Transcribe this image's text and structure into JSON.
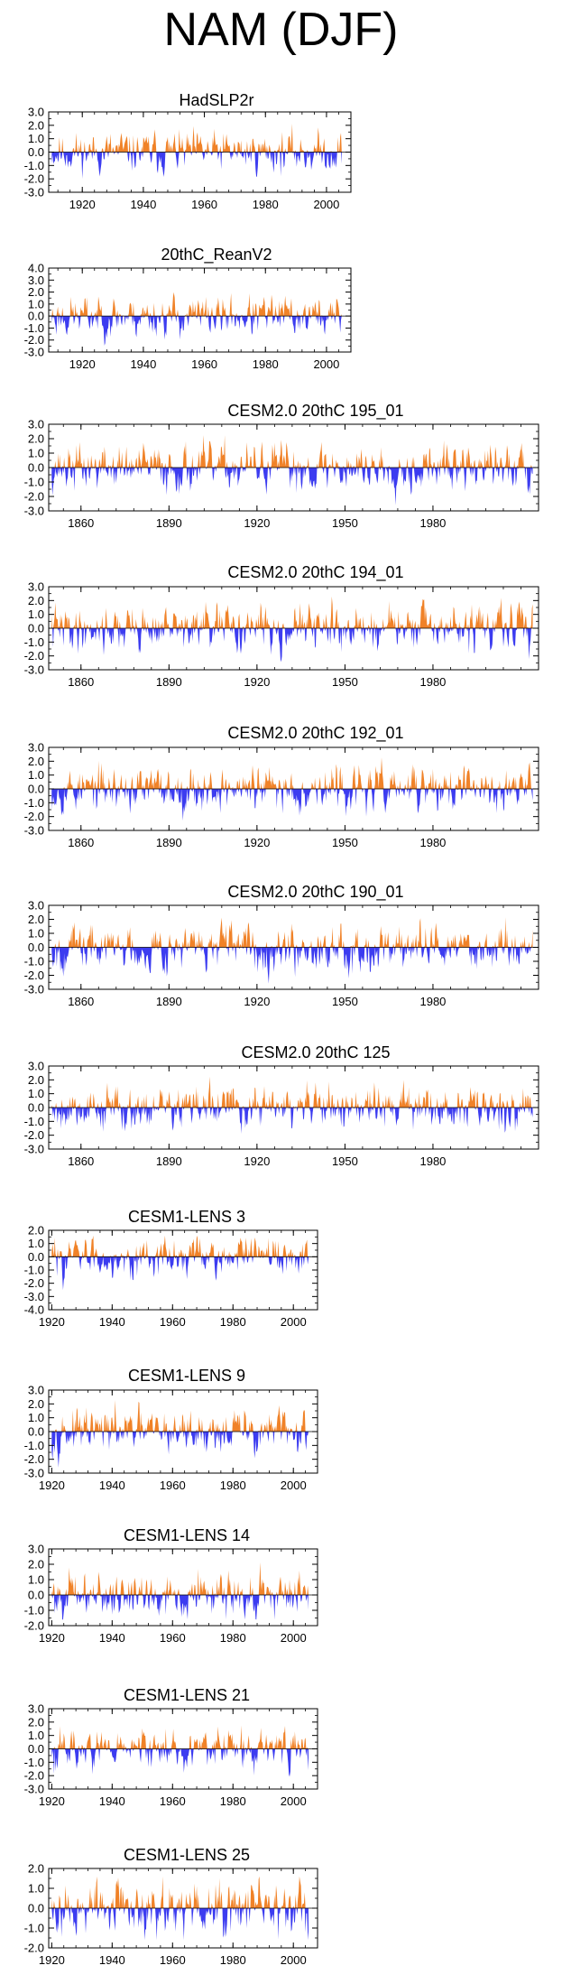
{
  "figure": {
    "title": "NAM (DJF)"
  },
  "colors": {
    "positive": "#f08228",
    "negative": "#3c3cf0",
    "axis": "#000000"
  },
  "chart_data": [
    {
      "type": "area",
      "title": "HadSLP2r",
      "xlim": [
        1909,
        2008
      ],
      "ylim": [
        -3.0,
        3.0
      ],
      "xticks": [
        1920,
        1940,
        1960,
        1980,
        2000
      ],
      "xtick_labels": [
        "1920",
        "1940",
        "1960",
        "1980",
        "2000"
      ],
      "yticks": [
        3.0,
        2.0,
        1.0,
        0.0,
        -1.0,
        -2.0,
        -3.0
      ],
      "ytick_labels": [
        "3.0",
        "2.0",
        "1.0",
        "0.0",
        "-1.0",
        "-2.0",
        "-3.0"
      ],
      "x_start": 1910,
      "x_end": 2005,
      "seed": 11,
      "amp": 0.85
    },
    {
      "type": "area",
      "title": "20thC_ReanV2",
      "xlim": [
        1909,
        2008
      ],
      "ylim": [
        -3.0,
        4.0
      ],
      "xticks": [
        1920,
        1940,
        1960,
        1980,
        2000
      ],
      "xtick_labels": [
        "1920",
        "1940",
        "1960",
        "1980",
        "2000"
      ],
      "yticks": [
        4.0,
        3.0,
        2.0,
        1.0,
        0.0,
        -1.0,
        -2.0,
        -3.0
      ],
      "ytick_labels": [
        "4.0",
        "3.0",
        "2.0",
        "1.0",
        "0.0",
        "-1.0",
        "-2.0",
        "-3.0"
      ],
      "x_start": 1910,
      "x_end": 2005,
      "seed": 23,
      "amp": 0.95
    },
    {
      "type": "area",
      "title": "CESM2.0 20thC 195_01",
      "xlim": [
        1849,
        2016
      ],
      "ylim": [
        -3.0,
        3.0
      ],
      "xticks": [
        1860,
        1890,
        1920,
        1950,
        1980
      ],
      "xtick_labels": [
        "1860",
        "1890",
        "1920",
        "1950",
        "1980"
      ],
      "yticks": [
        3.0,
        2.0,
        1.0,
        0.0,
        -1.0,
        -2.0,
        -3.0
      ],
      "ytick_labels": [
        "3.0",
        "2.0",
        "1.0",
        "0.0",
        "-1.0",
        "-2.0",
        "-3.0"
      ],
      "x_start": 1850,
      "x_end": 2014,
      "seed": 37,
      "amp": 0.9
    },
    {
      "type": "area",
      "title": "CESM2.0 20thC 194_01",
      "xlim": [
        1849,
        2016
      ],
      "ylim": [
        -3.0,
        3.0
      ],
      "xticks": [
        1860,
        1890,
        1920,
        1950,
        1980
      ],
      "xtick_labels": [
        "1860",
        "1890",
        "1920",
        "1950",
        "1980"
      ],
      "yticks": [
        3.0,
        2.0,
        1.0,
        0.0,
        -1.0,
        -2.0,
        -3.0
      ],
      "ytick_labels": [
        "3.0",
        "2.0",
        "1.0",
        "0.0",
        "-1.0",
        "-2.0",
        "-3.0"
      ],
      "x_start": 1850,
      "x_end": 2014,
      "seed": 41,
      "amp": 0.9
    },
    {
      "type": "area",
      "title": "CESM2.0 20thC 192_01",
      "xlim": [
        1849,
        2016
      ],
      "ylim": [
        -3.0,
        3.0
      ],
      "xticks": [
        1860,
        1890,
        1920,
        1950,
        1980
      ],
      "xtick_labels": [
        "1860",
        "1890",
        "1920",
        "1950",
        "1980"
      ],
      "yticks": [
        3.0,
        2.0,
        1.0,
        0.0,
        -1.0,
        -2.0,
        -3.0
      ],
      "ytick_labels": [
        "3.0",
        "2.0",
        "1.0",
        "0.0",
        "-1.0",
        "-2.0",
        "-3.0"
      ],
      "x_start": 1850,
      "x_end": 2014,
      "seed": 53,
      "amp": 0.9
    },
    {
      "type": "area",
      "title": "CESM2.0 20thC 190_01",
      "xlim": [
        1849,
        2016
      ],
      "ylim": [
        -3.0,
        3.0
      ],
      "xticks": [
        1860,
        1890,
        1920,
        1950,
        1980
      ],
      "xtick_labels": [
        "1860",
        "1890",
        "1920",
        "1950",
        "1980"
      ],
      "yticks": [
        3.0,
        2.0,
        1.0,
        0.0,
        -1.0,
        -2.0,
        -3.0
      ],
      "ytick_labels": [
        "3.0",
        "2.0",
        "1.0",
        "0.0",
        "-1.0",
        "-2.0",
        "-3.0"
      ],
      "x_start": 1850,
      "x_end": 2014,
      "seed": 67,
      "amp": 0.9
    },
    {
      "type": "area",
      "title": "CESM2.0 20thC 125",
      "xlim": [
        1849,
        2016
      ],
      "ylim": [
        -3.0,
        3.0
      ],
      "xticks": [
        1860,
        1890,
        1920,
        1950,
        1980
      ],
      "xtick_labels": [
        "1860",
        "1890",
        "1920",
        "1950",
        "1980"
      ],
      "yticks": [
        3.0,
        2.0,
        1.0,
        0.0,
        -1.0,
        -2.0,
        -3.0
      ],
      "ytick_labels": [
        "3.0",
        "2.0",
        "1.0",
        "0.0",
        "-1.0",
        "-2.0",
        "-3.0"
      ],
      "x_start": 1850,
      "x_end": 2014,
      "seed": 79,
      "amp": 0.9
    },
    {
      "type": "area",
      "title": "CESM1-LENS 3",
      "xlim": [
        1919,
        2008
      ],
      "ylim": [
        -4.0,
        2.0
      ],
      "xticks": [
        1920,
        1940,
        1960,
        1980,
        2000
      ],
      "xtick_labels": [
        "1920",
        "1940",
        "1960",
        "1980",
        "2000"
      ],
      "yticks": [
        2.0,
        1.0,
        0.0,
        -1.0,
        -2.0,
        -3.0,
        -4.0
      ],
      "ytick_labels": [
        "2.0",
        "1.0",
        "0.0",
        "-1.0",
        "-2.0",
        "-3.0",
        "-4.0"
      ],
      "x_start": 1920,
      "x_end": 2005,
      "seed": 83,
      "amp": 0.85
    },
    {
      "type": "area",
      "title": "CESM1-LENS 9",
      "xlim": [
        1919,
        2008
      ],
      "ylim": [
        -3.0,
        3.0
      ],
      "xticks": [
        1920,
        1940,
        1960,
        1980,
        2000
      ],
      "xtick_labels": [
        "1920",
        "1940",
        "1960",
        "1980",
        "2000"
      ],
      "yticks": [
        3.0,
        2.0,
        1.0,
        0.0,
        -1.0,
        -2.0,
        -3.0
      ],
      "ytick_labels": [
        "3.0",
        "2.0",
        "1.0",
        "0.0",
        "-1.0",
        "-2.0",
        "-3.0"
      ],
      "x_start": 1920,
      "x_end": 2005,
      "seed": 97,
      "amp": 0.9
    },
    {
      "type": "area",
      "title": "CESM1-LENS 14",
      "xlim": [
        1919,
        2008
      ],
      "ylim": [
        -2.0,
        3.0
      ],
      "xticks": [
        1920,
        1940,
        1960,
        1980,
        2000
      ],
      "xtick_labels": [
        "1920",
        "1940",
        "1960",
        "1980",
        "2000"
      ],
      "yticks": [
        3.0,
        2.0,
        1.0,
        0.0,
        -1.0,
        -2.0
      ],
      "ytick_labels": [
        "3.0",
        "2.0",
        "1.0",
        "0.0",
        "-1.0",
        "-2.0"
      ],
      "x_start": 1920,
      "x_end": 2005,
      "seed": 101,
      "amp": 0.85
    },
    {
      "type": "area",
      "title": "CESM1-LENS 21",
      "xlim": [
        1919,
        2008
      ],
      "ylim": [
        -3.0,
        3.0
      ],
      "xticks": [
        1920,
        1940,
        1960,
        1980,
        2000
      ],
      "xtick_labels": [
        "1920",
        "1940",
        "1960",
        "1980",
        "2000"
      ],
      "yticks": [
        3.0,
        2.0,
        1.0,
        0.0,
        -1.0,
        -2.0,
        -3.0
      ],
      "ytick_labels": [
        "3.0",
        "2.0",
        "1.0",
        "0.0",
        "-1.0",
        "-2.0",
        "-3.0"
      ],
      "x_start": 1920,
      "x_end": 2005,
      "seed": 113,
      "amp": 0.85
    },
    {
      "type": "area",
      "title": "CESM1-LENS 25",
      "xlim": [
        1919,
        2008
      ],
      "ylim": [
        -2.0,
        2.0
      ],
      "xticks": [
        1920,
        1940,
        1960,
        1980,
        2000
      ],
      "xtick_labels": [
        "1920",
        "1940",
        "1960",
        "1980",
        "2000"
      ],
      "yticks": [
        2.0,
        1.0,
        0.0,
        -1.0,
        -2.0
      ],
      "ytick_labels": [
        "2.0",
        "1.0",
        "0.0",
        "-1.0",
        "-2.0"
      ],
      "x_start": 1920,
      "x_end": 2005,
      "seed": 127,
      "amp": 0.8
    }
  ]
}
